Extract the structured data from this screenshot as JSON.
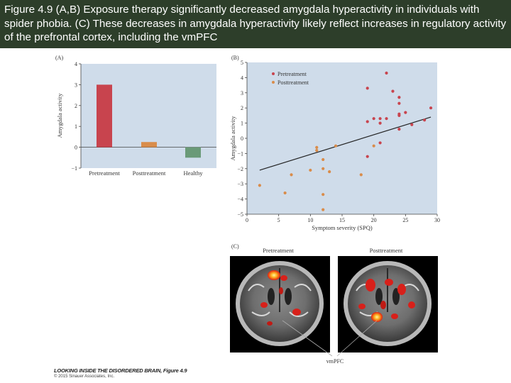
{
  "caption": "Figure 4.9 (A,B) Exposure therapy significantly decreased amygdala hyperactivity in individuals with spider phobia. (C) These decreases in amygdala hyperactivity likely reflect increases in regulatory activity of the prefrontal cortex, including the vmPFC",
  "colors": {
    "caption_bg": "#2d3e2a",
    "panel_bg": "#cfdcea",
    "pretreatment": "#c8444e",
    "posttreatment": "#d98c4a",
    "healthy": "#6a9a78"
  },
  "panel_a": {
    "label": "(A)"
  },
  "panel_b": {
    "label": "(B)"
  },
  "panel_c": {
    "label": "(C)",
    "left_title": "Pretreatment",
    "right_title": "Posttreatment",
    "annotation": "vmPFC"
  },
  "footer": {
    "title": "LOOKING INSIDE THE DISORDERED BRAIN, Figure 4.9",
    "copyright": "© 2015 Sinauer Associates, Inc."
  },
  "chart_data": [
    {
      "type": "bar",
      "ylabel": "Amygdala activity",
      "xlabel": "",
      "categories": [
        "Pretreatment",
        "Posttreatment",
        "Healthy"
      ],
      "values": [
        3.0,
        0.25,
        -0.5
      ],
      "ylim": [
        -1,
        4
      ],
      "yticks": [
        -1,
        0,
        1,
        2,
        3,
        4
      ],
      "grid": false
    },
    {
      "type": "scatter",
      "xlabel": "Symptom severity (SPQ)",
      "ylabel": "Amygdala activity",
      "xlim": [
        0,
        30
      ],
      "ylim": [
        -5,
        5
      ],
      "xticks": [
        0,
        5,
        10,
        15,
        20,
        25,
        30
      ],
      "yticks": [
        -5,
        -4,
        -3,
        -2,
        -1,
        0,
        1,
        2,
        3,
        4,
        5
      ],
      "legend_position": "top-left",
      "series": [
        {
          "name": "Pretreatment",
          "points": [
            [
              22,
              4.3
            ],
            [
              19,
              3.3
            ],
            [
              23,
              3.1
            ],
            [
              24,
              2.7
            ],
            [
              24,
              2.3
            ],
            [
              29,
              2.0
            ],
            [
              24,
              1.6
            ],
            [
              25,
              1.7
            ],
            [
              24,
              1.5
            ],
            [
              20,
              1.3
            ],
            [
              21,
              1.3
            ],
            [
              22,
              1.3
            ],
            [
              19,
              1.1
            ],
            [
              26,
              0.9
            ],
            [
              28,
              1.2
            ],
            [
              21,
              1.0
            ],
            [
              24,
              0.6
            ],
            [
              21,
              -0.3
            ],
            [
              19,
              -1.2
            ]
          ]
        },
        {
          "name": "Posttreatment",
          "points": [
            [
              20,
              -0.5
            ],
            [
              14,
              -0.5
            ],
            [
              11,
              -0.6
            ],
            [
              11,
              -0.8
            ],
            [
              12,
              -1.4
            ],
            [
              10,
              -2.1
            ],
            [
              12,
              -2.0
            ],
            [
              13,
              -2.2
            ],
            [
              18,
              -2.4
            ],
            [
              7,
              -2.4
            ],
            [
              2,
              -3.1
            ],
            [
              6,
              -3.6
            ],
            [
              12,
              -3.7
            ],
            [
              12,
              -4.7
            ]
          ]
        }
      ],
      "trendline": [
        [
          2,
          -2.1
        ],
        [
          29,
          1.4
        ]
      ]
    }
  ]
}
